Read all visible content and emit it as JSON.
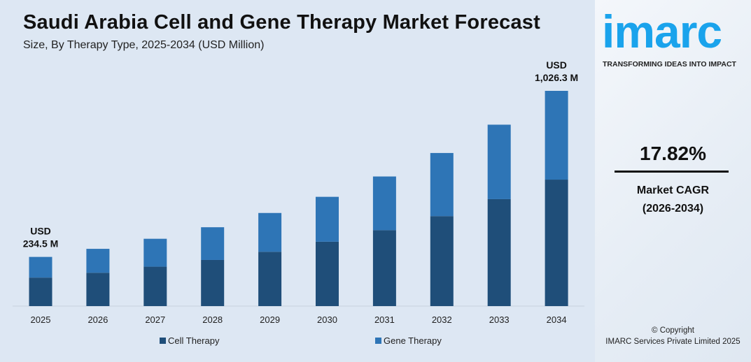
{
  "chart_data": {
    "type": "bar",
    "stacked": true,
    "title": "Saudi Arabia Cell and Gene Therapy Market Forecast",
    "subtitle": "Size, By Therapy Type, 2025-2034 (USD Million)",
    "categories": [
      "2025",
      "2026",
      "2027",
      "2028",
      "2029",
      "2030",
      "2031",
      "2032",
      "2033",
      "2034"
    ],
    "series": [
      {
        "name": "Cell Therapy",
        "color": "#1f4e79",
        "values": [
          136,
          159,
          188,
          220,
          259,
          307,
          362,
          429,
          510,
          603
        ]
      },
      {
        "name": "Gene Therapy",
        "color": "#2e75b6",
        "values": [
          98.5,
          114,
          133,
          156,
          185,
          214,
          256,
          301,
          355,
          423.3
        ]
      }
    ],
    "annotations": [
      {
        "category": "2025",
        "line1": "USD",
        "line2": "234.5 M"
      },
      {
        "category": "2034",
        "line1": "USD",
        "line2": "1,026.3 M"
      }
    ],
    "legend": "bottom",
    "grid": false,
    "ylim": [
      0,
      1026.3
    ]
  },
  "sidebar": {
    "logo": "imarc",
    "tagline": "TRANSFORMING IDEAS INTO IMPACT",
    "cagr_value": "17.82%",
    "cagr_label": "Market CAGR",
    "cagr_period": "(2026-2034)",
    "copyright": "© Copyright",
    "company": "IMARC Services Private Limited 2025"
  }
}
